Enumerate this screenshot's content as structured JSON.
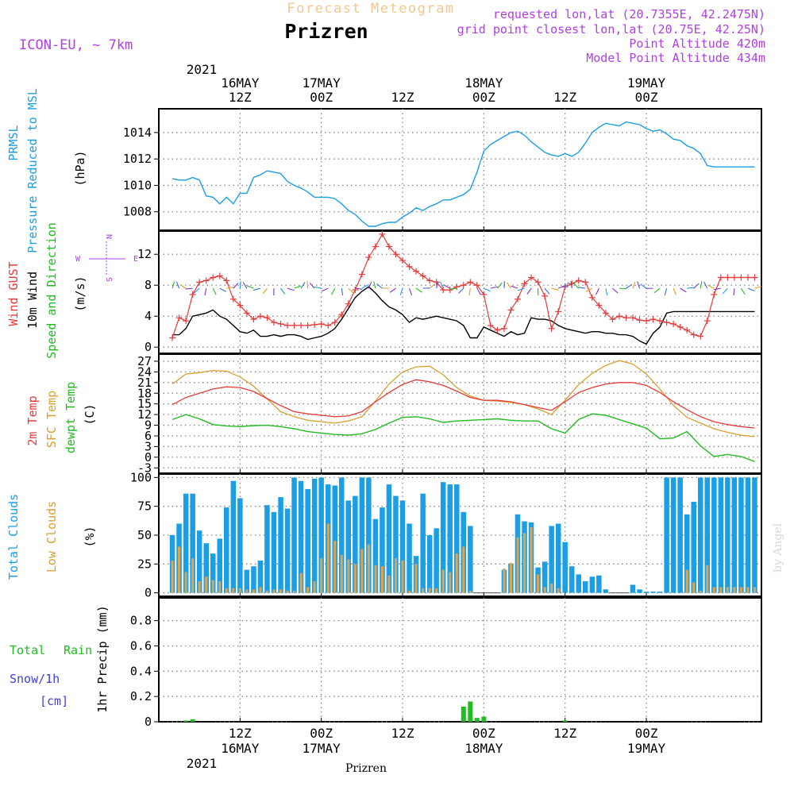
{
  "header": {
    "super_title": "Forecast Meteogram",
    "location": "Prizren",
    "model": "ICON-EU, ~ 7km",
    "info": [
      "requested lon,lat (20.7355E, 42.2475N)",
      "grid point closest lon,lat (20.75E, 42.25N)",
      "Point Altitude 420m",
      "Model Point Altitude 434m"
    ],
    "footer_location": "Prizren",
    "watermark": "by Angel"
  },
  "colors": {
    "pressure": "#1a9ee6",
    "gust": "#e63b3b",
    "wind": "#000000",
    "temp2m": "#e63b3b",
    "sfc": "#d9a030",
    "dewpt": "#22bb22",
    "total_clouds": "#1a9ee6",
    "low_clouds": "#d9a550",
    "rain": "#22bb22",
    "snow": "#4040e0",
    "info": "#b040e0",
    "title_faint": "#f0c890"
  },
  "time_axis": {
    "top_year": "2021",
    "bottom_year": "2021",
    "ticks": [
      {
        "hour": 12,
        "upper": "16MAY",
        "lower": "12Z",
        "top": true
      },
      {
        "hour": 24,
        "upper": "17MAY",
        "lower": "00Z",
        "top": true
      },
      {
        "hour": 36,
        "upper": "",
        "lower": "12Z",
        "top": true
      },
      {
        "hour": 48,
        "upper": "18MAY",
        "lower": "00Z",
        "top": true
      },
      {
        "hour": 60,
        "upper": "",
        "lower": "12Z",
        "top": true
      },
      {
        "hour": 72,
        "upper": "19MAY",
        "lower": "00Z",
        "top": true
      }
    ],
    "bottom_ticks": [
      {
        "hour": 12,
        "top_line": "12Z",
        "bottom_line": "16MAY"
      },
      {
        "hour": 24,
        "top_line": "00Z",
        "bottom_line": "17MAY"
      },
      {
        "hour": 36,
        "top_line": "12Z",
        "bottom_line": ""
      },
      {
        "hour": 48,
        "top_line": "00Z",
        "bottom_line": "18MAY"
      },
      {
        "hour": 60,
        "top_line": "12Z",
        "bottom_line": ""
      },
      {
        "hour": 72,
        "top_line": "00Z",
        "bottom_line": "19MAY"
      }
    ]
  },
  "panels": {
    "pressure": {
      "label1": "PRMSL",
      "label2": "Pressure Reduced to MSL",
      "unit": "(hPa)"
    },
    "wind": {
      "label_gust": "Wind GUST",
      "label_wind": "10m Wind",
      "label_dir": "Speed and Direction",
      "unit": "(m/s)",
      "compass_n": "N",
      "compass_s": "S",
      "compass_w": "W",
      "compass_e": "E"
    },
    "temp": {
      "label_t": "2m Temp",
      "label_sfc": "SFC Temp",
      "label_dew": "dewpt Temp",
      "unit": "(C)"
    },
    "clouds": {
      "label_total": "Total Clouds",
      "label_low": "Low Clouds",
      "unit": "(%)"
    },
    "precip": {
      "label_total": "Total",
      "label_rain": "Rain",
      "label_snow": "Snow/1h",
      "label_cm": "[cm]",
      "label_axis": "1hr Precip (mm)"
    }
  },
  "chart_data": [
    {
      "type": "line",
      "title": "PRMSL Pressure Reduced to MSL",
      "ylabel": "(hPa)",
      "ylim": [
        1006.6,
        1015.8
      ],
      "yticks": [
        1008,
        1010,
        1012,
        1014
      ],
      "x_hours": [
        2,
        3,
        4,
        5,
        6,
        7,
        8,
        9,
        10,
        11,
        12,
        13,
        14,
        15,
        16,
        17,
        18,
        19,
        20,
        21,
        22,
        23,
        24,
        25,
        26,
        27,
        28,
        29,
        30,
        31,
        32,
        33,
        34,
        35,
        36,
        37,
        38,
        39,
        40,
        41,
        42,
        43,
        44,
        45,
        46,
        47,
        48,
        49,
        50,
        51,
        52,
        53,
        54,
        55,
        56,
        57,
        58,
        59,
        60,
        61,
        62,
        63,
        64,
        65,
        66,
        67,
        68,
        69,
        70,
        71,
        72,
        73,
        74,
        75,
        76,
        77,
        78,
        79,
        80,
        81,
        82,
        83,
        84,
        85,
        86,
        87,
        88
      ],
      "series": [
        {
          "name": "PRMSL",
          "values": [
            1010.5,
            1010.4,
            1010.4,
            1010.6,
            1010.4,
            1009.2,
            1009.1,
            1008.6,
            1009.1,
            1008.6,
            1009.4,
            1009.4,
            1010.6,
            1010.8,
            1011.1,
            1011.0,
            1010.9,
            1010.3,
            1010.0,
            1009.8,
            1009.5,
            1009.1,
            1009.1,
            1009.1,
            1009.0,
            1008.6,
            1008.1,
            1007.8,
            1007.3,
            1006.9,
            1006.9,
            1007.1,
            1007.2,
            1007.2,
            1007.6,
            1007.9,
            1008.3,
            1008.1,
            1008.4,
            1008.6,
            1008.9,
            1008.9,
            1009.1,
            1009.3,
            1009.7,
            1011.0,
            1012.6,
            1013.1,
            1013.4,
            1013.7,
            1014.0,
            1014.1,
            1013.8,
            1013.3,
            1012.9,
            1012.5,
            1012.3,
            1012.2,
            1012.4,
            1012.2,
            1012.5,
            1013.2,
            1014.0,
            1014.4,
            1014.7,
            1014.6,
            1014.5,
            1014.8,
            1014.7,
            1014.6,
            1014.3,
            1014.1,
            1014.2,
            1013.9,
            1013.5,
            1013.4,
            1013.0,
            1012.8,
            1012.4,
            1011.5,
            1011.4,
            1011.4,
            1011.4,
            1011.4,
            1011.4,
            1011.4,
            1011.4
          ]
        }
      ]
    },
    {
      "type": "line",
      "title": "Wind GUST / 10m Wind Speed and Direction",
      "ylabel": "(m/s)",
      "ylim": [
        -0.8,
        15
      ],
      "yticks": [
        0,
        4,
        8,
        12
      ],
      "x_hours": [
        2,
        3,
        4,
        5,
        6,
        7,
        8,
        9,
        10,
        11,
        12,
        13,
        14,
        15,
        16,
        17,
        18,
        19,
        20,
        21,
        22,
        23,
        24,
        25,
        26,
        27,
        28,
        29,
        30,
        31,
        32,
        33,
        34,
        35,
        36,
        37,
        38,
        39,
        40,
        41,
        42,
        43,
        44,
        45,
        46,
        47,
        48,
        49,
        50,
        51,
        52,
        53,
        54,
        55,
        56,
        57,
        58,
        59,
        60,
        61,
        62,
        63,
        64,
        65,
        66,
        67,
        68,
        69,
        70,
        71,
        72,
        73,
        74,
        75,
        76,
        77,
        78,
        79,
        80,
        81,
        82,
        83,
        84,
        85,
        86,
        87,
        88
      ],
      "series": [
        {
          "name": "Wind GUST",
          "values": [
            1.2,
            3.8,
            3.4,
            6.8,
            8.4,
            8.6,
            9.0,
            9.2,
            8.6,
            6.2,
            5.4,
            4.4,
            3.6,
            4.0,
            3.8,
            3.2,
            3.0,
            2.8,
            2.8,
            2.8,
            2.8,
            2.9,
            3.0,
            2.8,
            3.2,
            4.2,
            5.6,
            7.4,
            9.4,
            11.6,
            13.0,
            14.6,
            13.0,
            12.0,
            11.2,
            10.4,
            9.8,
            9.2,
            8.6,
            8.4,
            7.4,
            7.4,
            7.8,
            8.0,
            8.4,
            8.0,
            6.8,
            2.8,
            2.2,
            2.4,
            4.8,
            6.2,
            8.2,
            9.0,
            8.4,
            6.6,
            2.4,
            4.6,
            7.8,
            8.2,
            8.6,
            8.4,
            6.4,
            5.4,
            4.4,
            3.6,
            4.0,
            3.8,
            3.8,
            3.5,
            3.4,
            3.6,
            3.4,
            3.2,
            3.0,
            2.6,
            2.2,
            1.6,
            1.4,
            3.4,
            6.8,
            9.0,
            9.0,
            9.0,
            9.0,
            9.0,
            9.0
          ]
        },
        {
          "name": "10m Wind",
          "values": [
            1.6,
            1.6,
            2.4,
            4.0,
            4.2,
            4.4,
            4.8,
            4.0,
            3.6,
            2.8,
            2.0,
            1.8,
            2.2,
            1.4,
            1.4,
            1.6,
            1.4,
            1.6,
            1.6,
            1.4,
            1.0,
            1.2,
            1.4,
            1.8,
            2.4,
            3.6,
            5.0,
            6.4,
            7.2,
            7.8,
            7.0,
            6.0,
            5.2,
            4.8,
            4.2,
            3.2,
            3.8,
            3.6,
            3.8,
            4.0,
            3.8,
            3.6,
            3.4,
            2.8,
            1.2,
            1.2,
            2.6,
            2.2,
            1.8,
            1.4,
            2.0,
            1.6,
            1.8,
            3.8,
            3.6,
            3.6,
            3.4,
            2.8,
            2.4,
            2.2,
            2.0,
            1.8,
            2.0,
            2.0,
            1.8,
            1.8,
            1.6,
            1.6,
            1.4,
            0.8,
            0.4,
            1.8,
            2.6,
            4.4,
            4.6,
            4.6,
            4.6,
            4.6,
            4.6,
            4.6,
            4.6,
            4.6,
            4.6,
            4.6,
            4.6,
            4.6,
            4.6
          ]
        }
      ]
    },
    {
      "type": "line",
      "title": "2m Temp / SFC Temp / dewpt Temp",
      "ylabel": "(C)",
      "ylim": [
        -4.5,
        29
      ],
      "yticks": [
        -3,
        0,
        3,
        6,
        9,
        12,
        15,
        18,
        21,
        24,
        27
      ],
      "x_hours": [
        2,
        4,
        6,
        8,
        10,
        12,
        14,
        16,
        18,
        20,
        22,
        24,
        26,
        28,
        30,
        32,
        34,
        36,
        38,
        40,
        42,
        44,
        46,
        48,
        50,
        52,
        54,
        56,
        58,
        60,
        62,
        64,
        66,
        68,
        70,
        72,
        74,
        76,
        78,
        80,
        82,
        84,
        86,
        88
      ],
      "series": [
        {
          "name": "2m Temp",
          "values": [
            14.8,
            16.8,
            18.0,
            19.2,
            19.8,
            19.6,
            18.5,
            16.5,
            14.5,
            12.8,
            12.2,
            11.8,
            11.4,
            11.6,
            12.8,
            15.6,
            18.2,
            20.5,
            21.8,
            21.2,
            20.2,
            18.6,
            16.8,
            16.0,
            16.0,
            15.6,
            14.8,
            14.0,
            13.2,
            15.6,
            18.2,
            19.6,
            20.6,
            21.0,
            21.0,
            20.2,
            18.2,
            15.6,
            13.4,
            11.4,
            10.0,
            9.2,
            8.6,
            8.2
          ]
        },
        {
          "name": "SFC Temp",
          "values": [
            20.6,
            23.4,
            23.8,
            24.4,
            24.2,
            22.6,
            20.0,
            16.4,
            12.8,
            11.4,
            10.4,
            10.0,
            9.6,
            10.2,
            11.4,
            15.8,
            20.6,
            24.0,
            25.4,
            25.6,
            23.2,
            19.6,
            17.2,
            16.0,
            15.8,
            15.4,
            14.8,
            13.6,
            12.0,
            16.0,
            20.4,
            23.6,
            25.8,
            27.2,
            26.2,
            23.4,
            19.2,
            14.6,
            11.2,
            9.6,
            8.0,
            7.0,
            6.2,
            5.8
          ]
        },
        {
          "name": "dewpt Temp",
          "values": [
            10.6,
            12.0,
            10.8,
            9.2,
            8.8,
            8.6,
            8.9,
            9.0,
            8.6,
            8.0,
            7.2,
            6.8,
            6.4,
            6.2,
            6.6,
            7.8,
            9.6,
            11.2,
            11.4,
            10.8,
            9.8,
            10.2,
            10.4,
            10.6,
            10.8,
            10.4,
            10.2,
            10.2,
            8.0,
            6.8,
            10.6,
            12.2,
            11.8,
            10.6,
            9.4,
            8.2,
            5.2,
            5.4,
            7.2,
            3.2,
            0.2,
            0.8,
            0.2,
            -1.2
          ]
        }
      ]
    },
    {
      "type": "bar",
      "title": "Total Clouds / Low Clouds",
      "ylabel": "(%)",
      "ylim": [
        -3,
        103
      ],
      "yticks": [
        0,
        25,
        50,
        75,
        100
      ],
      "x_hours": [
        2,
        3,
        4,
        5,
        6,
        7,
        8,
        9,
        10,
        11,
        12,
        13,
        14,
        15,
        16,
        17,
        18,
        19,
        20,
        21,
        22,
        23,
        24,
        25,
        26,
        27,
        28,
        29,
        30,
        31,
        32,
        33,
        34,
        35,
        36,
        37,
        38,
        39,
        40,
        41,
        42,
        43,
        44,
        45,
        46,
        47,
        48,
        49,
        50,
        51,
        52,
        53,
        54,
        55,
        56,
        57,
        58,
        59,
        60,
        61,
        62,
        63,
        64,
        65,
        66,
        67,
        68,
        69,
        70,
        71,
        72,
        73,
        74,
        75,
        76,
        77,
        78,
        79,
        80,
        81,
        82,
        83,
        84,
        85,
        86,
        87,
        88
      ],
      "series": [
        {
          "name": "Total Clouds",
          "values": [
            50,
            60,
            86,
            86,
            54,
            43,
            34,
            47,
            74,
            97,
            82,
            20,
            23,
            28,
            76,
            70,
            83,
            73,
            100,
            97,
            90,
            99,
            100,
            94,
            93,
            100,
            80,
            84,
            100,
            100,
            64,
            74,
            94,
            84,
            80,
            60,
            32,
            86,
            50,
            56,
            96,
            94,
            94,
            70,
            58,
            0,
            0,
            0,
            0,
            20,
            25,
            68,
            62,
            61,
            22,
            27,
            58,
            60,
            44,
            23,
            16,
            10,
            14,
            15,
            3,
            0,
            0,
            0,
            7,
            3,
            1,
            1,
            1,
            100,
            100,
            100,
            68,
            79,
            100,
            100,
            100,
            100,
            100,
            100,
            100,
            100,
            100
          ]
        },
        {
          "name": "Low Clouds",
          "values": [
            28,
            40,
            18,
            30,
            10,
            14,
            11,
            10,
            4,
            4,
            4,
            3,
            3,
            5,
            2,
            3,
            3,
            2,
            2,
            17,
            5,
            10,
            30,
            60,
            45,
            33,
            29,
            25,
            38,
            42,
            24,
            23,
            15,
            30,
            28,
            2,
            25,
            4,
            4,
            4,
            20,
            18,
            34,
            40,
            2,
            0,
            0,
            0,
            0,
            21,
            26,
            48,
            52,
            57,
            16,
            5,
            8,
            4,
            0,
            0,
            0,
            0,
            0,
            0,
            0,
            0,
            0,
            0,
            0,
            0,
            0,
            0,
            0,
            0,
            0,
            0,
            20,
            9,
            2,
            24,
            5,
            5,
            5,
            5,
            5,
            5,
            5
          ]
        }
      ]
    },
    {
      "type": "bar",
      "title": "Total Rain / Snow",
      "ylabel": "1hr Precip (mm)",
      "ylim": [
        0,
        0.98
      ],
      "yticks": [
        0,
        0.2,
        0.4,
        0.6,
        0.8
      ],
      "x_hours": [
        4,
        5,
        45,
        46,
        47,
        48,
        60
      ],
      "series": [
        {
          "name": "Total Rain",
          "values": [
            0.01,
            0.02,
            0.12,
            0.16,
            0.03,
            0.04,
            0.01
          ]
        },
        {
          "name": "Snow/1h",
          "values": [
            0,
            0,
            0,
            0,
            0,
            0,
            0
          ]
        }
      ]
    }
  ]
}
